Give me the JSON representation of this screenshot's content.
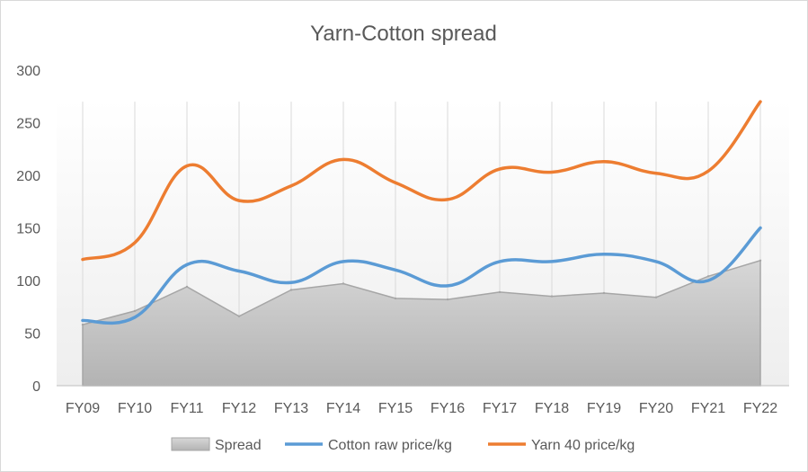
{
  "chart_data": {
    "type": "area+line",
    "title": "Yarn-Cotton  spread",
    "xlabel": "",
    "ylabel": "",
    "categories": [
      "FY09",
      "FY10",
      "FY11",
      "FY12",
      "FY13",
      "FY14",
      "FY15",
      "FY16",
      "FY17",
      "FY18",
      "FY19",
      "FY20",
      "FY21",
      "FY22"
    ],
    "ylim": [
      0,
      300
    ],
    "yticks": [
      0,
      50,
      100,
      150,
      200,
      250,
      300
    ],
    "grid": "vertical",
    "legend_position": "bottom",
    "series": [
      {
        "name": "Spread",
        "type": "area",
        "color": "#a6a6a6",
        "values": [
          58,
          71,
          94,
          66,
          91,
          97,
          83,
          82,
          89,
          85,
          88,
          84,
          104,
          119
        ]
      },
      {
        "name": "Cotton raw price/kg",
        "type": "line-smooth",
        "color": "#5b9bd5",
        "values": [
          62,
          65,
          115,
          109,
          98,
          118,
          110,
          95,
          118,
          118,
          125,
          118,
          100,
          150
        ]
      },
      {
        "name": "Yarn 40 price/kg",
        "type": "line-smooth",
        "color": "#ed7d31",
        "values": [
          120,
          136,
          209,
          176,
          190,
          215,
          193,
          177,
          206,
          203,
          213,
          202,
          204,
          270
        ]
      }
    ]
  }
}
